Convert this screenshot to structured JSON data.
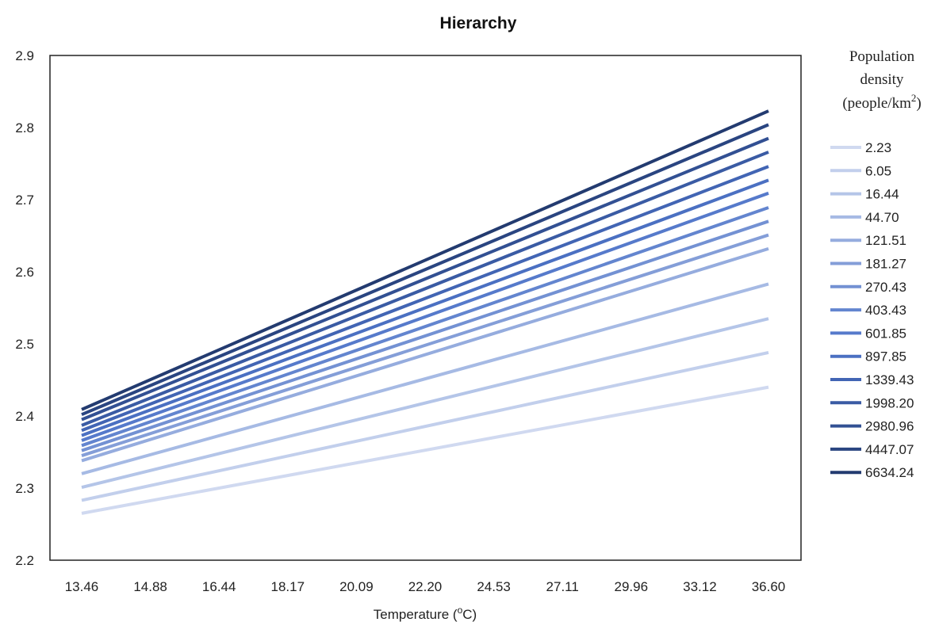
{
  "chart_data": {
    "type": "line",
    "title": "Hierarchy",
    "xlabel_base": "Temperature (",
    "xlabel_sup": "o",
    "xlabel_tail": "C)",
    "ylabel": "",
    "x": [
      "13.46",
      "14.88",
      "16.44",
      "18.17",
      "20.09",
      "22.20",
      "24.53",
      "27.11",
      "29.96",
      "33.12",
      "36.60"
    ],
    "ylim": [
      2.2,
      2.9
    ],
    "yticks": [
      "2.2",
      "2.3",
      "2.4",
      "2.5",
      "2.6",
      "2.7",
      "2.8",
      "2.9"
    ],
    "grid": false,
    "legend": {
      "placement": "right",
      "title_lines": [
        "Population",
        "density"
      ],
      "title_unit_base": "(people/km",
      "title_unit_sup": "2",
      "title_unit_tail": ")"
    },
    "series": [
      {
        "name": "2.23",
        "color": "#d0d9f0",
        "start": 2.265,
        "end": 2.44
      },
      {
        "name": "6.05",
        "color": "#c2cfec",
        "start": 2.283,
        "end": 2.488
      },
      {
        "name": "16.44",
        "color": "#b4c5e8",
        "start": 2.301,
        "end": 2.535
      },
      {
        "name": "44.70",
        "color": "#a6bae4",
        "start": 2.32,
        "end": 2.583
      },
      {
        "name": "121.51",
        "color": "#95acde",
        "start": 2.338,
        "end": 2.632
      },
      {
        "name": "181.27",
        "color": "#849ed8",
        "start": 2.345,
        "end": 2.651
      },
      {
        "name": "270.43",
        "color": "#7391d3",
        "start": 2.352,
        "end": 2.67
      },
      {
        "name": "403.43",
        "color": "#6385cf",
        "start": 2.359,
        "end": 2.689
      },
      {
        "name": "601.85",
        "color": "#567acb",
        "start": 2.366,
        "end": 2.709
      },
      {
        "name": "897.85",
        "color": "#4b70c2",
        "start": 2.373,
        "end": 2.727
      },
      {
        "name": "1339.43",
        "color": "#4265b4",
        "start": 2.38,
        "end": 2.746
      },
      {
        "name": "1998.20",
        "color": "#3a5ba4",
        "start": 2.387,
        "end": 2.766
      },
      {
        "name": "2980.96",
        "color": "#325093",
        "start": 2.395,
        "end": 2.785
      },
      {
        "name": "4447.07",
        "color": "#2a4581",
        "start": 2.402,
        "end": 2.804
      },
      {
        "name": "6634.24",
        "color": "#233b70",
        "start": 2.409,
        "end": 2.823
      }
    ]
  }
}
